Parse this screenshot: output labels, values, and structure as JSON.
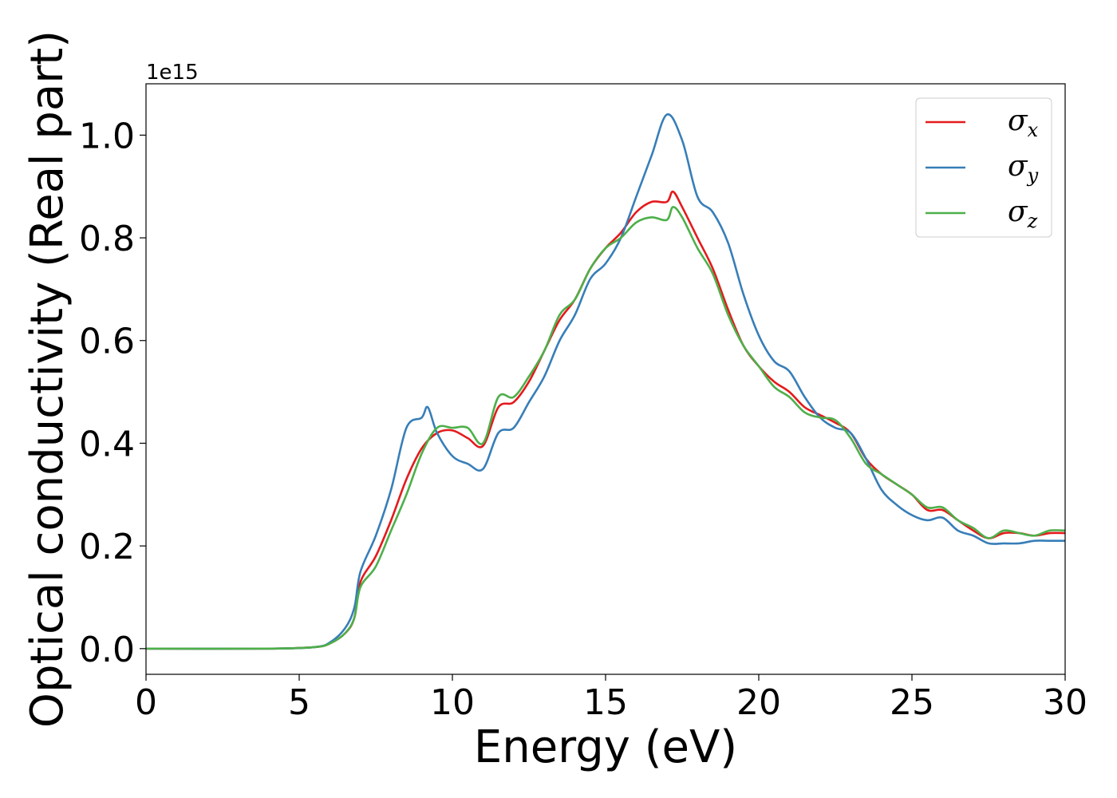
{
  "chart_data": {
    "type": "line",
    "xlabel": "Energy (eV)",
    "ylabel": "Optical conductivity (Real part)",
    "y_offset_label": "1e15",
    "xlim": [
      0,
      30
    ],
    "ylim": [
      -0.05,
      1.1
    ],
    "x_ticks": [
      0,
      5,
      10,
      15,
      20,
      25,
      30
    ],
    "y_ticks": [
      0.0,
      0.2,
      0.4,
      0.6,
      0.8,
      1.0
    ],
    "x_tick_labels": [
      "0",
      "5",
      "10",
      "15",
      "20",
      "25",
      "30"
    ],
    "y_tick_labels": [
      "0.0",
      "0.2",
      "0.4",
      "0.6",
      "0.8",
      "1.0"
    ],
    "grid": false,
    "legend_position": "top-right",
    "legend_symbol": "σ",
    "series": [
      {
        "name": "σx",
        "subscript": "x",
        "color": "#e41a1c",
        "x": [
          0,
          4,
          5.5,
          6.0,
          6.5,
          6.8,
          7.0,
          7.5,
          8.0,
          8.5,
          9.0,
          9.5,
          10.0,
          10.5,
          11.0,
          11.5,
          12.0,
          12.5,
          13.0,
          13.5,
          14.0,
          14.5,
          15.0,
          15.5,
          16.0,
          16.5,
          17.0,
          17.2,
          17.5,
          18.0,
          18.5,
          19.0,
          19.5,
          20.0,
          20.5,
          21.0,
          21.5,
          22.0,
          22.5,
          23.0,
          23.5,
          24.0,
          24.5,
          25.0,
          25.5,
          26.0,
          26.5,
          27.0,
          27.5,
          28.0,
          28.5,
          29.0,
          29.5,
          30.0
        ],
        "y": [
          0.0,
          0.0,
          0.003,
          0.01,
          0.03,
          0.06,
          0.13,
          0.18,
          0.25,
          0.33,
          0.39,
          0.42,
          0.425,
          0.41,
          0.395,
          0.47,
          0.48,
          0.52,
          0.58,
          0.64,
          0.68,
          0.74,
          0.78,
          0.81,
          0.85,
          0.87,
          0.87,
          0.89,
          0.86,
          0.8,
          0.74,
          0.66,
          0.59,
          0.55,
          0.52,
          0.5,
          0.47,
          0.455,
          0.44,
          0.42,
          0.37,
          0.34,
          0.32,
          0.3,
          0.27,
          0.27,
          0.25,
          0.23,
          0.215,
          0.225,
          0.225,
          0.22,
          0.225,
          0.225
        ]
      },
      {
        "name": "σy",
        "subscript": "y",
        "color": "#377eb8",
        "x": [
          0,
          4,
          5.5,
          6.0,
          6.5,
          6.8,
          7.0,
          7.5,
          8.0,
          8.5,
          9.0,
          9.2,
          9.5,
          10.0,
          10.5,
          11.0,
          11.5,
          12.0,
          12.5,
          13.0,
          13.5,
          14.0,
          14.5,
          15.0,
          15.5,
          16.0,
          16.5,
          17.0,
          17.5,
          18.0,
          18.5,
          19.0,
          19.5,
          20.0,
          20.5,
          21.0,
          21.5,
          22.0,
          22.5,
          23.0,
          23.5,
          24.0,
          24.5,
          25.0,
          25.5,
          26.0,
          26.5,
          27.0,
          27.5,
          28.0,
          28.5,
          29.0,
          29.5,
          30.0
        ],
        "y": [
          0.0,
          0.0,
          0.003,
          0.012,
          0.04,
          0.08,
          0.15,
          0.22,
          0.31,
          0.43,
          0.45,
          0.47,
          0.42,
          0.375,
          0.36,
          0.35,
          0.42,
          0.43,
          0.48,
          0.53,
          0.6,
          0.65,
          0.72,
          0.75,
          0.8,
          0.88,
          0.96,
          1.04,
          0.99,
          0.88,
          0.85,
          0.79,
          0.69,
          0.61,
          0.56,
          0.54,
          0.49,
          0.45,
          0.43,
          0.42,
          0.37,
          0.31,
          0.28,
          0.26,
          0.25,
          0.255,
          0.23,
          0.22,
          0.205,
          0.205,
          0.205,
          0.21,
          0.21,
          0.21
        ]
      },
      {
        "name": "σz",
        "subscript": "z",
        "color": "#4daf4a",
        "x": [
          0,
          4,
          5.5,
          6.0,
          6.5,
          6.8,
          7.0,
          7.5,
          8.0,
          8.5,
          9.0,
          9.5,
          10.0,
          10.5,
          11.0,
          11.5,
          12.0,
          12.5,
          13.0,
          13.5,
          14.0,
          14.5,
          15.0,
          15.5,
          16.0,
          16.5,
          17.0,
          17.2,
          17.5,
          18.0,
          18.5,
          19.0,
          19.5,
          20.0,
          20.5,
          21.0,
          21.5,
          22.0,
          22.5,
          23.0,
          23.5,
          24.0,
          24.5,
          25.0,
          25.5,
          26.0,
          26.5,
          27.0,
          27.5,
          28.0,
          28.5,
          29.0,
          29.5,
          30.0
        ],
        "y": [
          0.0,
          0.0,
          0.003,
          0.01,
          0.03,
          0.06,
          0.12,
          0.16,
          0.23,
          0.3,
          0.38,
          0.43,
          0.43,
          0.43,
          0.4,
          0.49,
          0.49,
          0.53,
          0.58,
          0.65,
          0.68,
          0.74,
          0.78,
          0.8,
          0.83,
          0.84,
          0.835,
          0.86,
          0.84,
          0.78,
          0.73,
          0.65,
          0.59,
          0.55,
          0.51,
          0.49,
          0.46,
          0.45,
          0.445,
          0.41,
          0.36,
          0.34,
          0.32,
          0.3,
          0.275,
          0.275,
          0.25,
          0.235,
          0.215,
          0.23,
          0.225,
          0.22,
          0.23,
          0.23
        ]
      }
    ]
  }
}
